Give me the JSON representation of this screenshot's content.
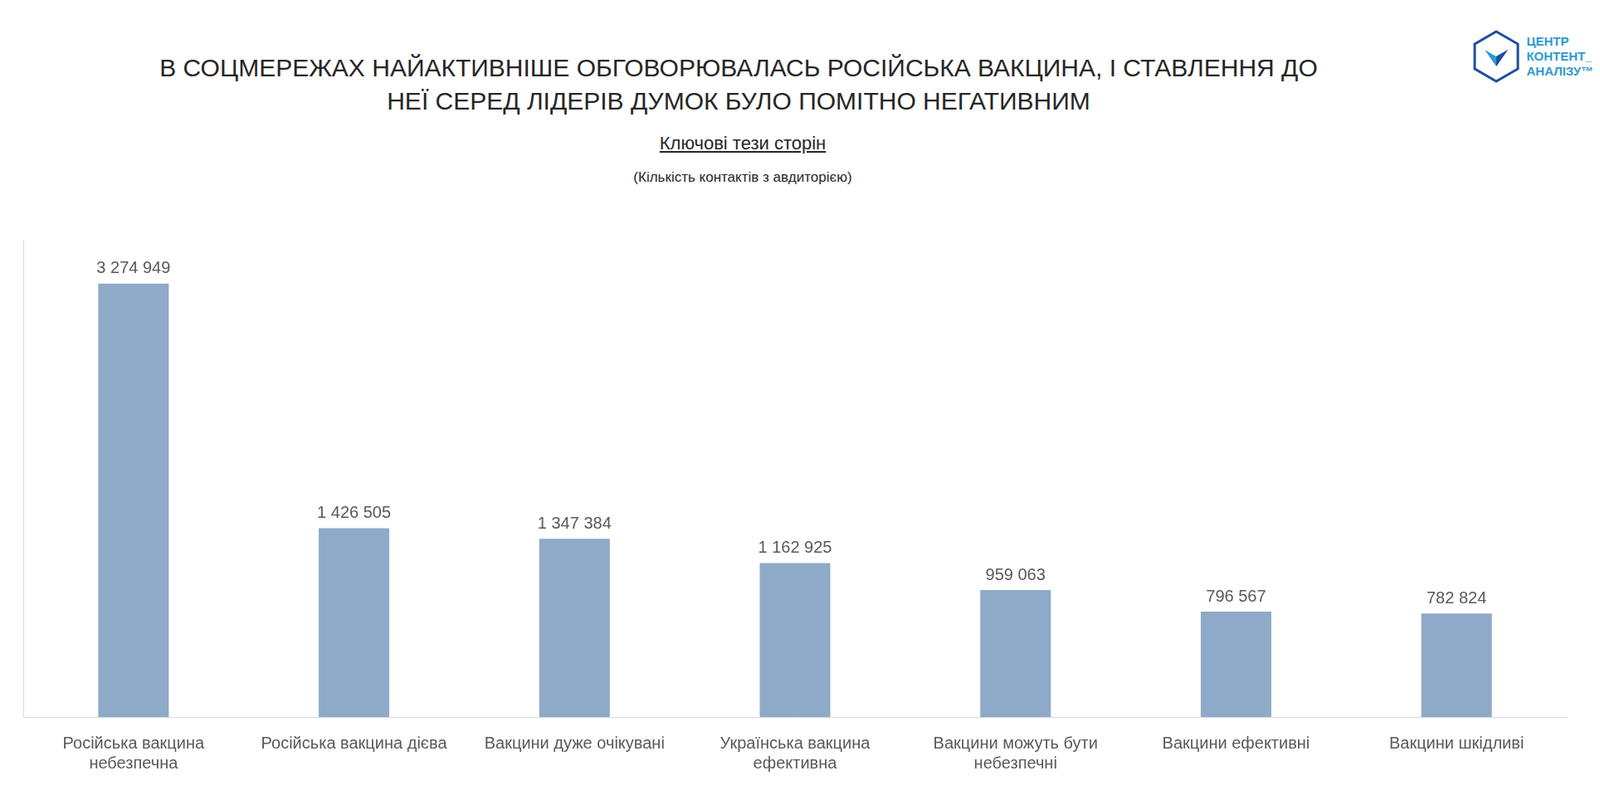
{
  "chart_data": {
    "type": "bar",
    "title": "В СОЦМЕРЕЖАХ НАЙАКТИВНІШЕ ОБГОВОРЮВАЛАСЬ РОСІЙСЬКА ВАКЦИНА, І СТАВЛЕННЯ ДО НЕЇ СЕРЕД ЛІДЕРІВ ДУМОК БУЛО ПОМІТНО НЕГАТИВНИМ",
    "subtitle": "Ключові тези сторін",
    "annotations": [
      "(Кількість контактів з авдиторією)"
    ],
    "logo": [
      "ЦЕНТР",
      "КОНТЕНТ_",
      "АНАЛІЗУ™"
    ],
    "categories": [
      "Російська вакцина небезпечна",
      "Російська вакцина дієва",
      "Вакцини дуже очікувані",
      "Українська вакцина ефективна",
      "Вакцини можуть бути небезпечні",
      "Вакцини ефективні",
      "Вакцини шкідливі"
    ],
    "values": [
      3274949,
      1426505,
      1347384,
      1162925,
      959063,
      796567,
      782824
    ],
    "value_labels": [
      "3 274 949",
      "1 426 505",
      "1 347 384",
      "1 162 925",
      "959 063",
      "796 567",
      "782 824"
    ],
    "color": "#8eaac8",
    "ylim": [
      0,
      3600000
    ],
    "yticks": [],
    "grid": false,
    "data_labels": true,
    "tick_labels": "x"
  }
}
